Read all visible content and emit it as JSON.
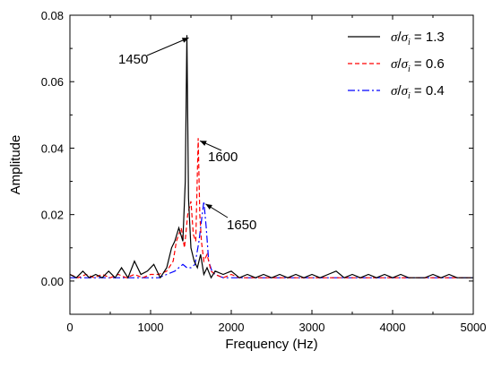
{
  "chart_data": {
    "type": "line",
    "xlabel": "Frequency (Hz)",
    "ylabel": "Amplitude",
    "xlim": [
      0,
      5000
    ],
    "ylim": [
      -0.01,
      0.08
    ],
    "xticks": [
      0,
      1000,
      2000,
      3000,
      4000,
      5000
    ],
    "yticks": [
      0.0,
      0.02,
      0.04,
      0.06,
      0.08
    ],
    "ytick_labels": [
      "0.00",
      "0.02",
      "0.04",
      "0.06",
      "0.08"
    ],
    "grid": false,
    "legend_position": "top-right",
    "legend_prefix_numerator": "σ",
    "legend_prefix_denominator": "σ",
    "legend_prefix_subscript": "i",
    "series": [
      {
        "name": "σ/σi = 1.3",
        "legend_value": " = 1.3",
        "color": "#000000",
        "dash": "solid",
        "x": [
          0,
          80,
          160,
          240,
          320,
          400,
          480,
          560,
          640,
          720,
          800,
          880,
          960,
          1040,
          1120,
          1200,
          1260,
          1300,
          1350,
          1400,
          1430,
          1450,
          1470,
          1500,
          1540,
          1580,
          1620,
          1660,
          1700,
          1750,
          1800,
          1900,
          2000,
          2100,
          2200,
          2300,
          2400,
          2500,
          2600,
          2700,
          2800,
          2900,
          3000,
          3100,
          3200,
          3300,
          3400,
          3500,
          3600,
          3700,
          3800,
          3900,
          4000,
          4100,
          4200,
          4300,
          4400,
          4500,
          4600,
          4700,
          4800,
          4900,
          5000
        ],
        "y": [
          0.002,
          0.001,
          0.003,
          0.001,
          0.002,
          0.001,
          0.003,
          0.001,
          0.004,
          0.001,
          0.006,
          0.002,
          0.003,
          0.005,
          0.001,
          0.004,
          0.01,
          0.012,
          0.016,
          0.012,
          0.03,
          0.074,
          0.025,
          0.01,
          0.006,
          0.004,
          0.008,
          0.002,
          0.004,
          0.001,
          0.003,
          0.002,
          0.003,
          0.001,
          0.002,
          0.001,
          0.002,
          0.001,
          0.002,
          0.001,
          0.002,
          0.001,
          0.002,
          0.001,
          0.002,
          0.003,
          0.001,
          0.002,
          0.001,
          0.002,
          0.001,
          0.002,
          0.001,
          0.002,
          0.001,
          0.001,
          0.001,
          0.002,
          0.001,
          0.002,
          0.001,
          0.001,
          0.001
        ]
      },
      {
        "name": "σ/σi = 0.6",
        "legend_value": " = 0.6",
        "color": "#ff0000",
        "dash": "5,3",
        "x": [
          0,
          100,
          200,
          300,
          400,
          500,
          600,
          700,
          800,
          900,
          1000,
          1100,
          1200,
          1280,
          1320,
          1380,
          1420,
          1460,
          1500,
          1530,
          1560,
          1590,
          1610,
          1630,
          1660,
          1700,
          1750,
          1800,
          1900,
          2000,
          2100,
          2200,
          2400,
          2600,
          2800,
          3000,
          3200,
          3400,
          3600,
          3800,
          4000,
          4200,
          4400,
          4600,
          4800,
          5000
        ],
        "y": [
          0.002,
          0.001,
          0.002,
          0.001,
          0.002,
          0.001,
          0.002,
          0.001,
          0.002,
          0.001,
          0.002,
          0.002,
          0.003,
          0.006,
          0.012,
          0.016,
          0.01,
          0.02,
          0.024,
          0.014,
          0.012,
          0.043,
          0.02,
          0.012,
          0.006,
          0.008,
          0.003,
          0.002,
          0.001,
          0.002,
          0.001,
          0.001,
          0.001,
          0.001,
          0.001,
          0.001,
          0.001,
          0.001,
          0.001,
          0.001,
          0.001,
          0.001,
          0.001,
          0.001,
          0.001,
          0.001
        ]
      },
      {
        "name": "σ/σi = 0.4",
        "legend_value": " = 0.4",
        "color": "#0000ff",
        "dash": "8,3,2,3",
        "x": [
          0,
          100,
          200,
          300,
          400,
          500,
          600,
          700,
          800,
          900,
          1000,
          1100,
          1200,
          1300,
          1350,
          1400,
          1450,
          1500,
          1550,
          1600,
          1630,
          1660,
          1690,
          1720,
          1760,
          1800,
          1900,
          2000,
          2200,
          2400,
          2600,
          2800,
          3000,
          3200,
          3400,
          3600,
          3800,
          4000,
          4200,
          4400,
          4600,
          4800,
          5000
        ],
        "y": [
          0.001,
          0.001,
          0.001,
          0.001,
          0.001,
          0.001,
          0.001,
          0.001,
          0.001,
          0.001,
          0.001,
          0.001,
          0.002,
          0.003,
          0.004,
          0.005,
          0.004,
          0.004,
          0.005,
          0.012,
          0.018,
          0.024,
          0.016,
          0.006,
          0.003,
          0.002,
          0.001,
          0.001,
          0.001,
          0.001,
          0.001,
          0.001,
          0.001,
          0.001,
          0.001,
          0.001,
          0.001,
          0.001,
          0.001,
          0.001,
          0.001,
          0.001,
          0.001
        ]
      }
    ],
    "annotations": [
      {
        "text": "1450",
        "x": 1450,
        "y": 0.074
      },
      {
        "text": "1600",
        "x": 1590,
        "y": 0.043
      },
      {
        "text": "1650",
        "x": 1660,
        "y": 0.024
      }
    ]
  }
}
